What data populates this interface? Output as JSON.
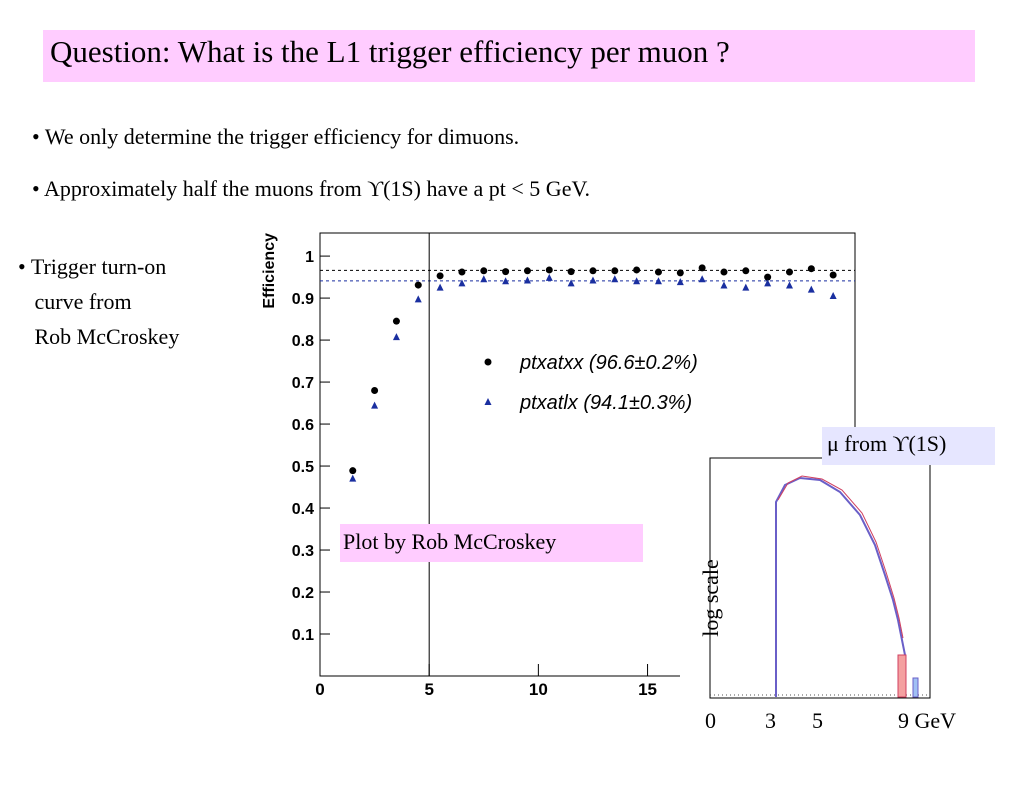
{
  "title": "Question: What is the L1 trigger efficiency per muon ?",
  "bullets": [
    "We only determine the trigger efficiency for dimuons.",
    "Approximately half the muons from ϒ(1S) have a pt < 5 GeV."
  ],
  "side_bullet": [
    "Trigger turn-on",
    "curve from",
    "Rob McCroskey"
  ],
  "plot_note": "Plot by Rob McCroskey",
  "inset": {
    "title": "μ from ϒ(1S)",
    "ylabel": "log scale",
    "tick_labels": [
      "0",
      "3",
      "5",
      "9 GeV"
    ]
  },
  "chart_data": {
    "type": "scatter",
    "ylabel": "Efficiency",
    "x": [
      1.5,
      2.5,
      3.5,
      4.5,
      5.5,
      6.5,
      7.5,
      8.5,
      9.5,
      10.5,
      11.5,
      12.5,
      13.5,
      14.5,
      15.5,
      16.5,
      17.5,
      18.5,
      19.5,
      20.5,
      21.5,
      22.5,
      23.5
    ],
    "series": [
      {
        "name": "ptxatxx (96.6±0.2%)",
        "color": "#000000",
        "marker": "circle",
        "values": [
          0.489,
          0.68,
          0.845,
          0.931,
          0.953,
          0.962,
          0.965,
          0.963,
          0.965,
          0.967,
          0.963,
          0.965,
          0.965,
          0.967,
          0.962,
          0.96,
          0.972,
          0.962,
          0.965,
          0.95,
          0.962,
          0.97,
          0.955
        ]
      },
      {
        "name": "ptxatlx (94.1±0.3%)",
        "color": "#1a2fa0",
        "marker": "triangle",
        "values": [
          0.47,
          0.644,
          0.807,
          0.897,
          0.925,
          0.935,
          0.945,
          0.94,
          0.942,
          0.948,
          0.935,
          0.942,
          0.945,
          0.94,
          0.94,
          0.938,
          0.945,
          0.93,
          0.925,
          0.935,
          0.93,
          0.92,
          0.905
        ]
      }
    ],
    "hlines": [
      0.966,
      0.941
    ],
    "vline": 5,
    "xlim": [
      0,
      24.5
    ],
    "ylim": [
      0,
      1.055
    ],
    "xticks": [
      0,
      5,
      10,
      15
    ],
    "yticks": [
      0.1,
      0.2,
      0.3,
      0.4,
      0.5,
      0.6,
      0.7,
      0.8,
      0.9,
      1
    ]
  }
}
